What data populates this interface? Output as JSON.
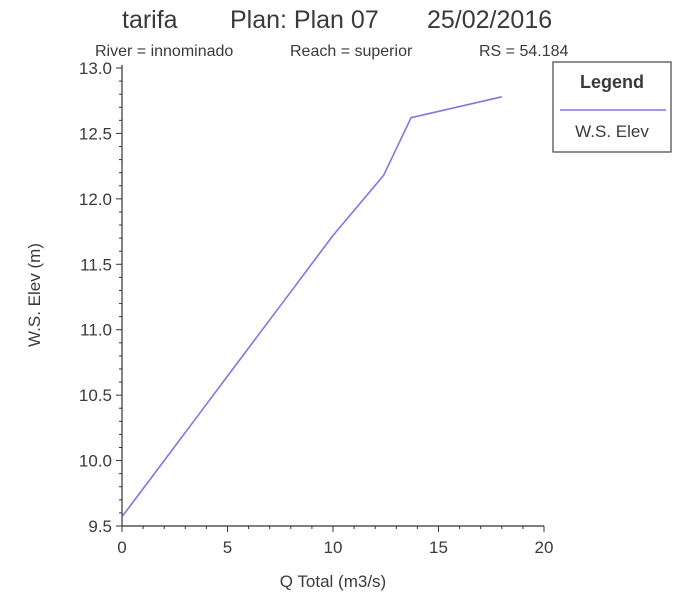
{
  "chart_data": {
    "type": "line",
    "title": {
      "study": "tarifa",
      "plan": "Plan: Plan 07",
      "date": "25/02/2016"
    },
    "subtitle": {
      "river": "River = innominado",
      "reach": "Reach = superior",
      "rs": "RS = 54.184"
    },
    "xlabel": "Q Total  (m3/s)",
    "ylabel": "W.S. Elev  (m)",
    "xlim": [
      0,
      20
    ],
    "ylim": [
      9.5,
      13.0
    ],
    "x_ticks": [
      "0",
      "5",
      "10",
      "15",
      "20"
    ],
    "y_ticks": [
      "9.5",
      "10.0",
      "10.5",
      "11.0",
      "11.5",
      "12.0",
      "12.5",
      "13.0"
    ],
    "grid": false,
    "legend": {
      "title": "Legend",
      "placement": "right",
      "entries": [
        "W.S. Elev"
      ]
    },
    "series": [
      {
        "name": "W.S. Elev",
        "color": "#7b7bdd",
        "x": [
          0,
          2,
          4,
          6,
          8,
          10,
          12.4,
          13.7,
          18.0
        ],
        "y": [
          9.57,
          10.0,
          10.43,
          10.86,
          11.29,
          11.72,
          12.18,
          12.62,
          12.78
        ]
      }
    ]
  }
}
